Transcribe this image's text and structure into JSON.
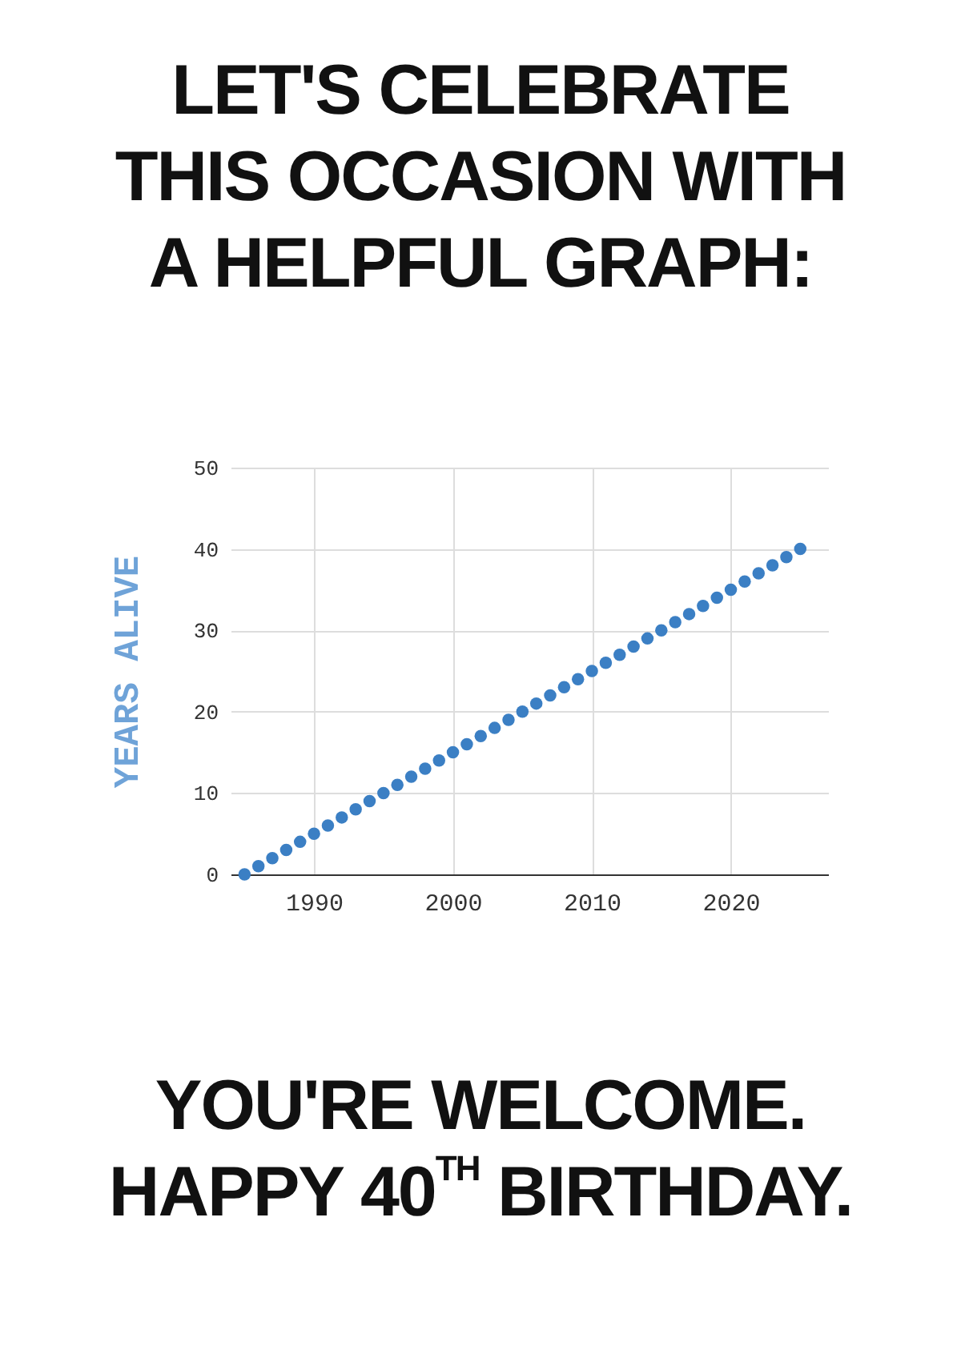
{
  "chart_data": {
    "type": "scatter",
    "title": "LET'S CELEBRATE THIS OCCASION WITH A HELPFUL GRAPH:",
    "ylabel": "YEARS ALIVE",
    "annotations": [
      "YOU'RE WELCOME.",
      "HAPPY 40$^{TH}$ BIRTHDAY."
    ],
    "x": [
      1985,
      1986,
      1987,
      1988,
      1989,
      1990,
      1991,
      1992,
      1993,
      1994,
      1995,
      1996,
      1997,
      1998,
      1999,
      2000,
      2001,
      2002,
      2003,
      2004,
      2005,
      2006,
      2007,
      2008,
      2009,
      2010,
      2011,
      2012,
      2013,
      2014,
      2015,
      2016,
      2017,
      2018,
      2019,
      2020,
      2021,
      2022,
      2023,
      2024,
      2025
    ],
    "series": [
      {
        "color": "#3b7fc4",
        "values": [
          0,
          1,
          2,
          3,
          4,
          5,
          6,
          7,
          8,
          9,
          10,
          11,
          12,
          13,
          14,
          15,
          16,
          17,
          18,
          19,
          20,
          21,
          22,
          23,
          24,
          25,
          26,
          27,
          28,
          29,
          30,
          31,
          32,
          33,
          34,
          35,
          36,
          37,
          38,
          39,
          40
        ]
      }
    ],
    "xlim": [
      1984,
      2027
    ],
    "xticks": [
      1990,
      2000,
      2010,
      2020
    ],
    "ylim": [
      0,
      50
    ],
    "yticks": [
      0,
      10,
      20,
      30,
      40,
      50
    ],
    "grid": true,
    "marker": "circle"
  }
}
